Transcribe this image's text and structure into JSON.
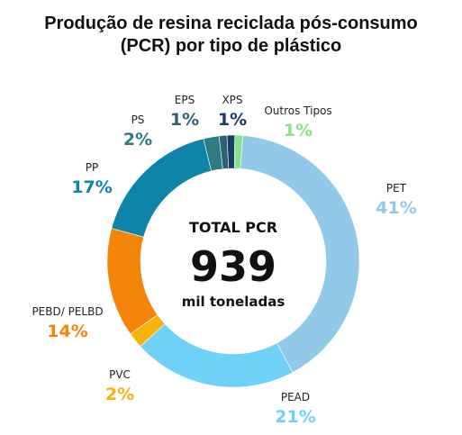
{
  "chart_data": {
    "type": "pie",
    "title_line1": "Produção de resina reciclada pós-consumo",
    "title_line2": "(PCR) por tipo de plástico",
    "center": {
      "label": "TOTAL PCR",
      "value": "939",
      "unit": "mil toneladas"
    },
    "slices": [
      {
        "name": "PET",
        "value": 41,
        "label": "41%",
        "color": "#93c9e8"
      },
      {
        "name": "PEAD",
        "value": 21,
        "label": "21%",
        "color": "#6fd1f7"
      },
      {
        "name": "PVC",
        "value": 2,
        "label": "2%",
        "color": "#f8b20c"
      },
      {
        "name": "PEBD/ PELBD",
        "value": 14,
        "label": "14%",
        "color": "#f5840a"
      },
      {
        "name": "PP",
        "value": 17,
        "label": "17%",
        "color": "#0d84a8"
      },
      {
        "name": "PS",
        "value": 2,
        "label": "2%",
        "color": "#2d7b85"
      },
      {
        "name": "EPS",
        "value": 1,
        "label": "1%",
        "color": "#2d6272"
      },
      {
        "name": "XPS",
        "value": 1,
        "label": "1%",
        "color": "#1b3e66"
      },
      {
        "name": "Outros Tipos",
        "value": 1,
        "label": "1%",
        "color": "#8be08b"
      }
    ],
    "label_colors": {
      "PET": "#93c9e8",
      "PEAD": "#6fd1f7",
      "PVC": "#f8b20c",
      "PEBD/ PELBD": "#f5840a",
      "PP": "#0d84a8",
      "PS": "#2d7b85",
      "EPS": "#2d6272",
      "XPS": "#1b3e66",
      "Outros Tipos": "#8be08b"
    }
  }
}
